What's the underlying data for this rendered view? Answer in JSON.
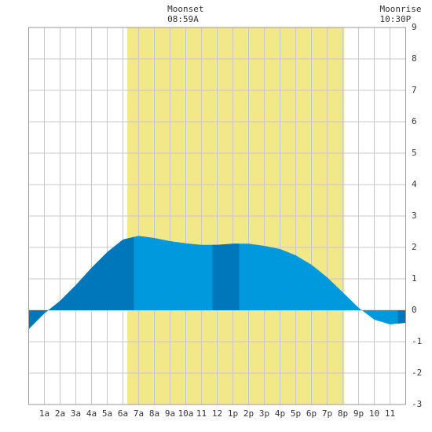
{
  "chart_data": {
    "type": "area",
    "x": [
      0,
      1,
      2,
      3,
      4,
      5,
      6,
      7,
      8,
      9,
      10,
      11,
      12,
      13,
      14,
      15,
      16,
      17,
      18,
      19,
      20,
      21,
      22,
      23,
      24
    ],
    "values": [
      -0.6,
      -0.1,
      0.3,
      0.8,
      1.35,
      1.85,
      2.25,
      2.37,
      2.3,
      2.2,
      2.13,
      2.08,
      2.08,
      2.12,
      2.12,
      2.05,
      1.95,
      1.75,
      1.45,
      1.05,
      0.57,
      0.08,
      -0.3,
      -0.45,
      -0.4
    ],
    "color": "#0099dd",
    "dark_color": "#0077bb",
    "dark_spans": [
      [
        0,
        6.7
      ],
      [
        11.7,
        13.4
      ],
      [
        23.5,
        24
      ]
    ],
    "daylight": [
      6.28,
      20.1
    ],
    "daylight_color": "#f2e88a",
    "xlim": [
      0,
      24
    ],
    "xticks": [
      {
        "value": 1,
        "label": "1a"
      },
      {
        "value": 2,
        "label": "2a"
      },
      {
        "value": 3,
        "label": "3a"
      },
      {
        "value": 4,
        "label": "4a"
      },
      {
        "value": 5,
        "label": "5a"
      },
      {
        "value": 6,
        "label": "6a"
      },
      {
        "value": 7,
        "label": "7a"
      },
      {
        "value": 8,
        "label": "8a"
      },
      {
        "value": 9,
        "label": "9a"
      },
      {
        "value": 10,
        "label": "10a"
      },
      {
        "value": 11,
        "label": "11"
      },
      {
        "value": 12,
        "label": "12"
      },
      {
        "value": 13,
        "label": "1p"
      },
      {
        "value": 14,
        "label": "2p"
      },
      {
        "value": 15,
        "label": "3p"
      },
      {
        "value": 16,
        "label": "4p"
      },
      {
        "value": 17,
        "label": "5p"
      },
      {
        "value": 18,
        "label": "6p"
      },
      {
        "value": 19,
        "label": "7p"
      },
      {
        "value": 20,
        "label": "8p"
      },
      {
        "value": 21,
        "label": "9p"
      },
      {
        "value": 22,
        "label": "10"
      },
      {
        "value": 23,
        "label": "11"
      }
    ],
    "ylim": [
      -3,
      9
    ],
    "yticks": [
      -3,
      -2,
      -1,
      0,
      1,
      2,
      3,
      4,
      5,
      6,
      7,
      8,
      9
    ],
    "grid": true,
    "annotations": [
      {
        "label": "Moonset",
        "time": "08:59A",
        "x": 8.98
      },
      {
        "label": "Moonrise",
        "time": "10:30P",
        "x": 22.5
      }
    ]
  }
}
